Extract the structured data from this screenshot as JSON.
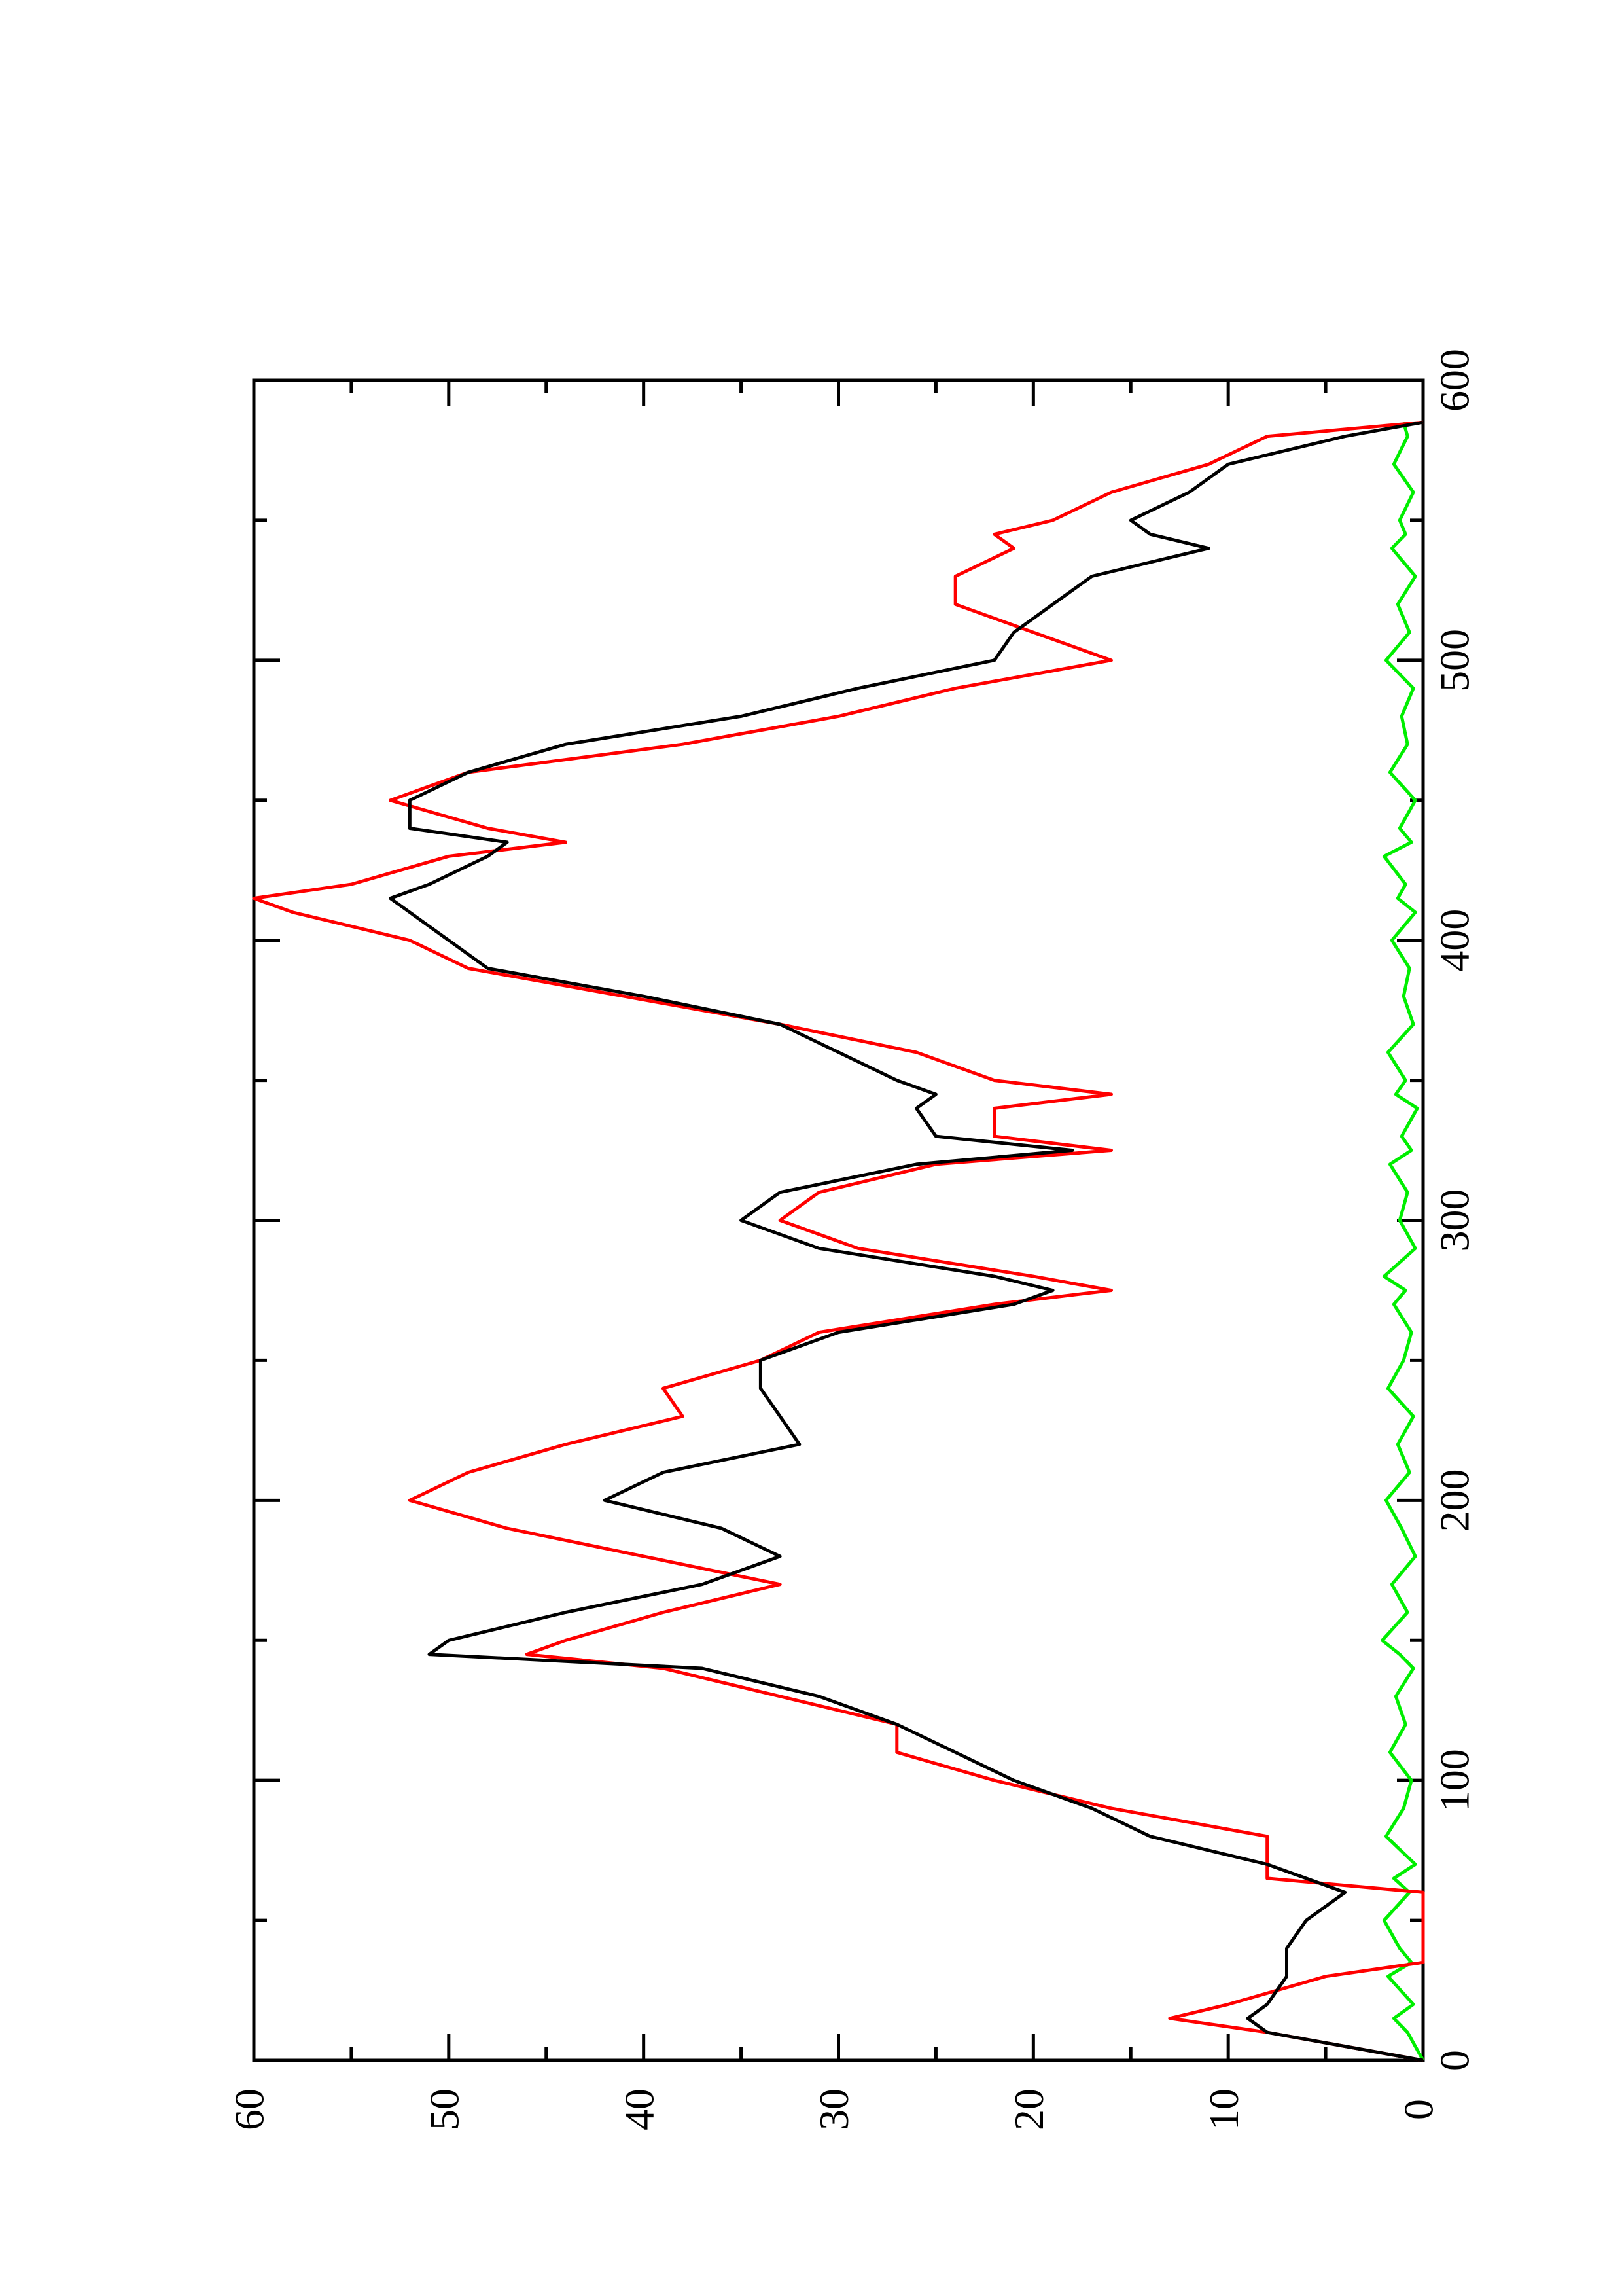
{
  "chart_data": {
    "type": "line",
    "x": [
      0,
      10,
      15,
      20,
      30,
      35,
      40,
      50,
      60,
      65,
      70,
      80,
      90,
      100,
      110,
      120,
      130,
      140,
      145,
      150,
      160,
      170,
      180,
      190,
      200,
      210,
      220,
      230,
      240,
      250,
      260,
      270,
      275,
      280,
      290,
      300,
      310,
      320,
      325,
      330,
      340,
      345,
      350,
      360,
      370,
      380,
      390,
      400,
      410,
      415,
      420,
      430,
      435,
      440,
      450,
      460,
      470,
      480,
      490,
      500,
      510,
      520,
      530,
      540,
      545,
      550,
      560,
      570,
      580,
      585
    ],
    "series": [
      {
        "color": "#000000",
        "values": [
          0,
          8,
          9,
          8,
          7,
          7,
          7,
          6,
          4,
          6,
          8,
          14,
          17,
          21,
          24,
          27,
          31,
          37,
          51,
          50,
          44,
          37,
          33,
          36,
          42,
          39,
          32,
          33,
          34,
          34,
          30,
          21,
          19,
          22,
          31,
          35,
          33,
          26,
          18,
          25,
          26,
          25,
          27,
          30,
          33,
          40,
          48,
          50,
          52,
          53,
          51,
          48,
          47,
          52,
          52,
          49,
          44,
          35,
          29,
          22,
          21,
          19,
          17,
          11,
          14,
          15,
          12,
          10,
          4,
          0
        ]
      },
      {
        "color": "#ff0000",
        "values": [
          0,
          8,
          13,
          10,
          5,
          0,
          0,
          0,
          0,
          8,
          8,
          8,
          16,
          22,
          27,
          27,
          33,
          39,
          46,
          44,
          39,
          33,
          40,
          47,
          52,
          49,
          44,
          38,
          39,
          34,
          31,
          22,
          16,
          20,
          29,
          33,
          31,
          25,
          16,
          22,
          22,
          16,
          22,
          26,
          33,
          41,
          49,
          52,
          58,
          60,
          55,
          50,
          44,
          48,
          53,
          49,
          38,
          30,
          24,
          16,
          20,
          24,
          24,
          21,
          22,
          19,
          16,
          11,
          8,
          0
        ]
      },
      {
        "color": "#00ee00",
        "values": [
          0,
          0.8,
          1.5,
          0.5,
          1.8,
          0.6,
          1.2,
          2,
          0.7,
          1.5,
          0.4,
          1.9,
          1,
          0.6,
          1.7,
          0.9,
          1.4,
          0.5,
          1.2,
          2.1,
          0.8,
          1.6,
          0.4,
          1.1,
          1.9,
          0.7,
          1.3,
          0.5,
          1.8,
          1,
          0.6,
          1.5,
          0.9,
          2,
          0.4,
          1.2,
          0.8,
          1.7,
          0.6,
          1.1,
          0.3,
          1.4,
          0.9,
          1.8,
          0.5,
          1,
          0.7,
          1.6,
          0.4,
          1.3,
          0.9,
          2,
          0.6,
          1.2,
          0.4,
          1.7,
          0.8,
          1.1,
          0.5,
          1.9,
          0.7,
          1.3,
          0.4,
          1.6,
          0.9,
          1.2,
          0.5,
          1.5,
          0.8,
          1
        ]
      }
    ],
    "xlim": [
      0,
      600
    ],
    "xticks": [
      0,
      100,
      200,
      300,
      400,
      500,
      600
    ],
    "xminorticks": [
      50,
      150,
      250,
      350,
      450,
      550
    ],
    "ylim": [
      0,
      60
    ],
    "yticks": [
      0,
      10,
      20,
      30,
      40,
      50,
      60
    ],
    "yminorticks": [
      5,
      15,
      25,
      35,
      45,
      55
    ]
  }
}
